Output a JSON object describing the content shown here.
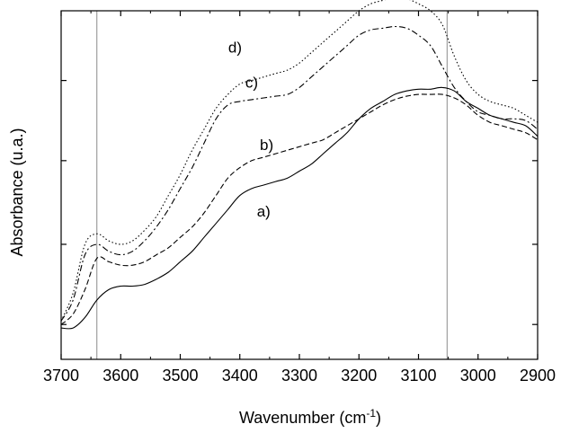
{
  "chart_data": {
    "type": "line",
    "xlabel": "Wavenumber (cm",
    "xlabel_sup": "-1",
    "xlabel_end": ")",
    "ylabel": "Absorbance (u.a.)",
    "x_reversed": true,
    "xlim": [
      3700,
      2900
    ],
    "ylim": [
      0,
      1
    ],
    "x_ticks": [
      3700,
      3600,
      3500,
      3400,
      3300,
      3200,
      3100,
      3000,
      2900
    ],
    "y_ticks": [
      0.1,
      0.33,
      0.57,
      0.8
    ],
    "y_tick_labels_shown": false,
    "grid": false,
    "reference_lines_x": [
      3640,
      3052
    ],
    "series": [
      {
        "name": "a)",
        "style": "solid",
        "label_at": [
          3360,
          0.41
        ],
        "x": [
          3700,
          3680,
          3660,
          3640,
          3620,
          3600,
          3580,
          3560,
          3540,
          3520,
          3500,
          3480,
          3460,
          3440,
          3420,
          3400,
          3380,
          3360,
          3340,
          3320,
          3300,
          3280,
          3260,
          3240,
          3220,
          3200,
          3180,
          3160,
          3140,
          3120,
          3100,
          3080,
          3060,
          3040,
          3020,
          3000,
          2980,
          2960,
          2940,
          2920,
          2900
        ],
        "values": [
          0.09,
          0.09,
          0.12,
          0.17,
          0.2,
          0.21,
          0.21,
          0.215,
          0.23,
          0.25,
          0.28,
          0.31,
          0.35,
          0.39,
          0.43,
          0.47,
          0.49,
          0.5,
          0.51,
          0.52,
          0.54,
          0.56,
          0.59,
          0.62,
          0.65,
          0.69,
          0.72,
          0.74,
          0.76,
          0.77,
          0.775,
          0.775,
          0.78,
          0.77,
          0.74,
          0.72,
          0.7,
          0.69,
          0.68,
          0.67,
          0.64
        ]
      },
      {
        "name": "b)",
        "style": "dashed",
        "label_at": [
          3355,
          0.6
        ],
        "x": [
          3700,
          3680,
          3660,
          3640,
          3620,
          3600,
          3580,
          3560,
          3540,
          3520,
          3500,
          3480,
          3460,
          3440,
          3420,
          3400,
          3380,
          3360,
          3340,
          3320,
          3300,
          3280,
          3260,
          3240,
          3220,
          3200,
          3180,
          3160,
          3140,
          3120,
          3100,
          3080,
          3060,
          3040,
          3020,
          3000,
          2980,
          2960,
          2940,
          2920,
          2900
        ],
        "values": [
          0.1,
          0.13,
          0.2,
          0.29,
          0.28,
          0.27,
          0.27,
          0.28,
          0.3,
          0.32,
          0.35,
          0.38,
          0.42,
          0.47,
          0.52,
          0.55,
          0.57,
          0.58,
          0.59,
          0.6,
          0.61,
          0.62,
          0.63,
          0.65,
          0.67,
          0.69,
          0.71,
          0.73,
          0.745,
          0.755,
          0.76,
          0.76,
          0.76,
          0.75,
          0.73,
          0.7,
          0.68,
          0.67,
          0.66,
          0.65,
          0.63
        ]
      },
      {
        "name": "c)",
        "style": "dash-dot",
        "label_at": [
          3380,
          0.78
        ],
        "x": [
          3700,
          3680,
          3660,
          3640,
          3620,
          3600,
          3580,
          3560,
          3540,
          3520,
          3500,
          3480,
          3460,
          3440,
          3420,
          3400,
          3380,
          3360,
          3340,
          3320,
          3300,
          3280,
          3260,
          3240,
          3220,
          3200,
          3180,
          3160,
          3140,
          3120,
          3100,
          3080,
          3060,
          3040,
          3020,
          3000,
          2980,
          2960,
          2940,
          2920,
          2900
        ],
        "values": [
          0.11,
          0.17,
          0.3,
          0.33,
          0.31,
          0.3,
          0.31,
          0.34,
          0.38,
          0.43,
          0.49,
          0.55,
          0.62,
          0.69,
          0.73,
          0.74,
          0.745,
          0.75,
          0.755,
          0.76,
          0.78,
          0.81,
          0.84,
          0.87,
          0.9,
          0.93,
          0.945,
          0.95,
          0.955,
          0.95,
          0.93,
          0.9,
          0.84,
          0.78,
          0.74,
          0.71,
          0.7,
          0.69,
          0.69,
          0.685,
          0.66
        ]
      },
      {
        "name": "d)",
        "style": "dotted",
        "label_at": [
          3408,
          0.88
        ],
        "x": [
          3700,
          3680,
          3660,
          3640,
          3620,
          3600,
          3580,
          3560,
          3540,
          3520,
          3500,
          3480,
          3460,
          3440,
          3420,
          3400,
          3380,
          3360,
          3340,
          3320,
          3300,
          3280,
          3260,
          3240,
          3220,
          3200,
          3180,
          3160,
          3140,
          3120,
          3100,
          3080,
          3060,
          3040,
          3020,
          3000,
          2980,
          2960,
          2940,
          2920,
          2900
        ],
        "values": [
          0.11,
          0.19,
          0.33,
          0.36,
          0.34,
          0.33,
          0.34,
          0.37,
          0.41,
          0.47,
          0.53,
          0.6,
          0.66,
          0.72,
          0.76,
          0.79,
          0.8,
          0.81,
          0.82,
          0.83,
          0.85,
          0.88,
          0.91,
          0.94,
          0.97,
          1.0,
          1.02,
          1.03,
          1.04,
          1.035,
          1.02,
          1.0,
          0.96,
          0.87,
          0.8,
          0.76,
          0.74,
          0.73,
          0.72,
          0.7,
          0.68
        ]
      }
    ]
  }
}
